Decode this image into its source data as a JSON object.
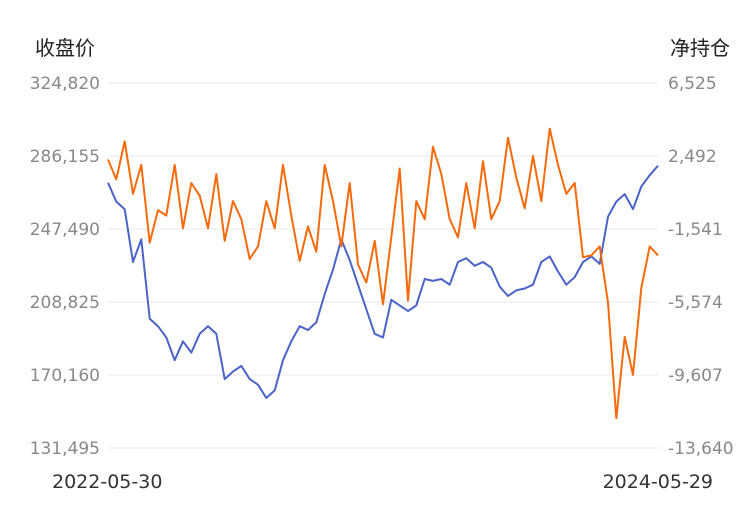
{
  "chart_data": {
    "type": "line",
    "left_axis_title": "收盘价",
    "right_axis_title": "净持仓",
    "left_ticks": [
      "324,820",
      "286,155",
      "247,490",
      "208,825",
      "170,160",
      "131,495"
    ],
    "right_ticks": [
      "6,525",
      "2,492",
      "-1,541",
      "-5,574",
      "-9,607",
      "-13,640"
    ],
    "y_left_range": [
      131495,
      324820
    ],
    "y_right_range": [
      -13640,
      6525
    ],
    "x_labels": [
      "2022-05-30",
      "2024-05-29"
    ],
    "x_range": [
      "2022-05-30",
      "2024-05-29"
    ],
    "grid": true,
    "colors": {
      "close": "#4a63c8",
      "net": "#f56a0d"
    },
    "series": [
      {
        "key": "close",
        "axis": "left",
        "values": [
          272000,
          262000,
          258000,
          230000,
          242000,
          200000,
          196000,
          190000,
          178000,
          188000,
          182000,
          192000,
          196000,
          192000,
          168000,
          172000,
          175000,
          168000,
          165000,
          158000,
          162000,
          178000,
          188000,
          196000,
          194000,
          198000,
          213000,
          226000,
          242000,
          231000,
          218000,
          205000,
          192000,
          190000,
          210000,
          207000,
          204000,
          207000,
          221000,
          220000,
          221000,
          218000,
          230000,
          232000,
          228000,
          230000,
          227000,
          217000,
          212000,
          215000,
          216000,
          218000,
          230000,
          233000,
          225000,
          218000,
          222000,
          230000,
          233000,
          229000,
          254000,
          262000,
          266000,
          258000,
          270000,
          276000,
          281000
        ]
      },
      {
        "key": "net",
        "axis": "right",
        "values": [
          2300,
          1200,
          3300,
          400,
          2000,
          -2300,
          -500,
          -800,
          2000,
          -1500,
          1000,
          300,
          -1500,
          1500,
          -2200,
          0,
          -1000,
          -3200,
          -2500,
          0,
          -1500,
          2000,
          -800,
          -3300,
          -1400,
          -2800,
          2000,
          0,
          -2500,
          1000,
          -3500,
          -4500,
          -2200,
          -5700,
          -2000,
          1800,
          -5500,
          0,
          -1000,
          3000,
          1500,
          -1000,
          -2000,
          1000,
          -1500,
          2200,
          -1000,
          0,
          3500,
          1300,
          -400,
          2500,
          0,
          4000,
          2000,
          400,
          1000,
          -3100,
          -3000,
          -2500,
          -5600,
          -12000,
          -7500,
          -9600,
          -4800,
          -2500,
          -3000
        ]
      }
    ]
  }
}
